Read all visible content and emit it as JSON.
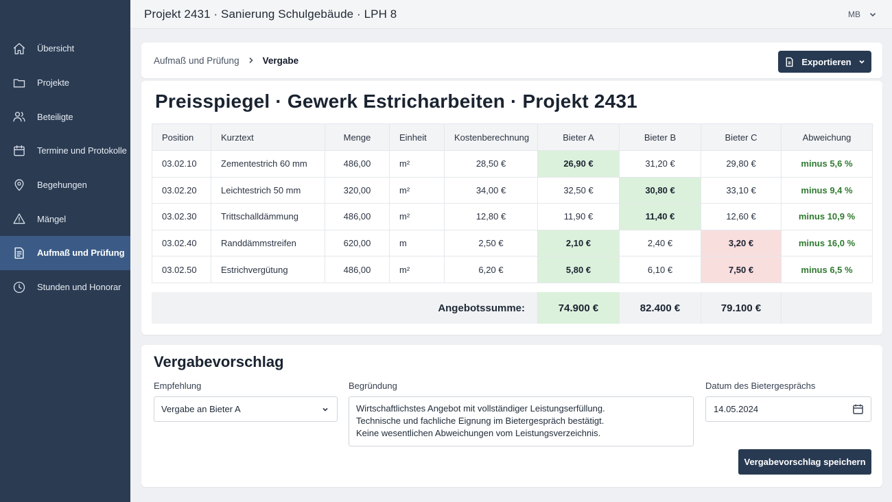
{
  "topbar": {
    "title": "Projekt 2431 · Sanierung Schulgebäude · LPH 8",
    "user": "MB",
    "chevron_icon": "chevron-down-icon"
  },
  "sidebar": {
    "items": [
      {
        "label": "Übersicht",
        "icon": "home-icon",
        "active": false
      },
      {
        "label": "Projekte",
        "icon": "folder-icon",
        "active": false
      },
      {
        "label": "Beteiligte",
        "icon": "users-icon",
        "active": false
      },
      {
        "label": "Termine und Protokolle",
        "icon": "calendar-icon",
        "active": false
      },
      {
        "label": "Begehungen",
        "icon": "map-pin-icon",
        "active": false
      },
      {
        "label": "Mängel",
        "icon": "warning-icon",
        "active": false
      },
      {
        "label": "Aufmaß und Prüfung",
        "icon": "document-icon",
        "active": true
      },
      {
        "label": "Stunden und Honorar",
        "icon": "clock-icon",
        "active": false
      }
    ]
  },
  "breadcrumb": {
    "parent": "Aufmaß und Prüfung",
    "current": "Vergabe"
  },
  "export_button": {
    "label": "Exportieren"
  },
  "main": {
    "title": "Preisspiegel · Gewerk Estricharbeiten · Projekt 2431",
    "table": {
      "headers": [
        "Position",
        "Kurztext",
        "Menge",
        "Einheit",
        "Kostenberechnung",
        "Bieter A",
        "Bieter B",
        "Bieter C",
        "Abweichung"
      ],
      "rows": [
        {
          "position": "03.02.10",
          "kurztext": "Zementestrich 60 mm",
          "menge": "486,00",
          "einheit": "m²",
          "kosten": "28,50 €",
          "a": "26,90 €",
          "b": "31,20 €",
          "c": "29,80 €",
          "abweichung": "minus 5,6 %",
          "best": "a",
          "worst": ""
        },
        {
          "position": "03.02.20",
          "kurztext": "Leichtestrich 50 mm",
          "menge": "320,00",
          "einheit": "m²",
          "kosten": "34,00 €",
          "a": "32,50 €",
          "b": "30,80 €",
          "c": "33,10 €",
          "abweichung": "minus 9,4 %",
          "best": "b",
          "worst": ""
        },
        {
          "position": "03.02.30",
          "kurztext": "Trittschalldämmung",
          "menge": "486,00",
          "einheit": "m²",
          "kosten": "12,80 €",
          "a": "11,90 €",
          "b": "11,40 €",
          "c": "12,60 €",
          "abweichung": "minus 10,9 %",
          "best": "b",
          "worst": ""
        },
        {
          "position": "03.02.40",
          "kurztext": "Randdämmstreifen",
          "menge": "620,00",
          "einheit": "m",
          "kosten": "2,50 €",
          "a": "2,10 €",
          "b": "2,40 €",
          "c": "3,20 €",
          "abweichung": "minus 16,0 %",
          "best": "a",
          "worst": "c"
        },
        {
          "position": "03.02.50",
          "kurztext": "Estrichvergütung",
          "menge": "486,00",
          "einheit": "m²",
          "kosten": "6,20 €",
          "a": "5,80 €",
          "b": "6,10 €",
          "c": "7,50 €",
          "abweichung": "minus 6,5 %",
          "best": "a",
          "worst": "c"
        }
      ],
      "sum_label": "Angebotssumme:",
      "sum_a": "74.900 €",
      "sum_b": "82.400 €",
      "sum_c": "79.100 €"
    }
  },
  "vergabe": {
    "title": "Vergabevorschlag",
    "empfehlung_label": "Empfehlung",
    "empfehlung_value": "Vergabe an Bieter A",
    "begruendung_label": "Begründung",
    "begruendung_lines": [
      "Wirtschaftlichstes Angebot mit vollständiger Leistungserfüllung.",
      "Technische und fachliche Eignung im Bietergespräch bestätigt.",
      "Keine wesentlichen Abweichungen vom Leistungsverzeichnis."
    ],
    "datum_label": "Datum des Bietergesprächs",
    "datum_value": "14.05.2024",
    "save_label": "Vergabevorschlag speichern"
  },
  "colors": {
    "sidebar_bg": "#2a3b52",
    "sidebar_active": "#3b5b86",
    "button_bg": "#283a52",
    "best_bg": "#dcf1dc",
    "worst_bg": "#f9dede",
    "deviation_text": "#2f7a2f"
  }
}
